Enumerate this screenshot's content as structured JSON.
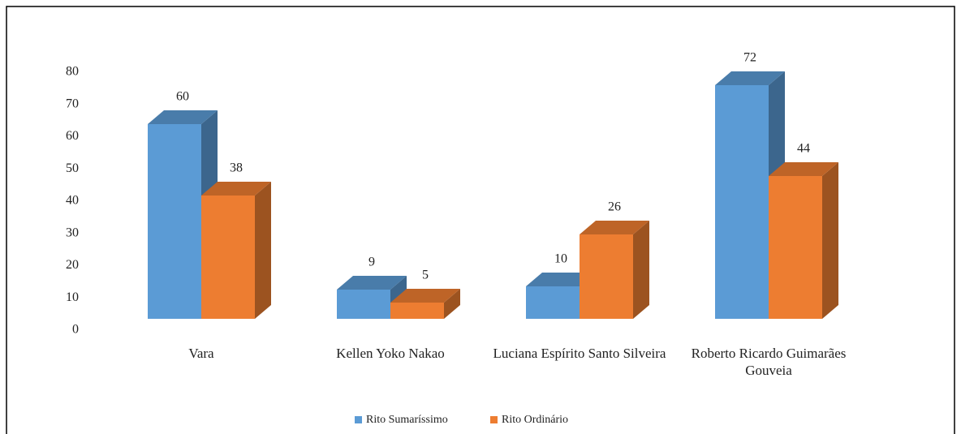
{
  "chart_data": {
    "type": "bar3d",
    "categories": [
      "Vara",
      "Kellen Yoko Nakao",
      "Luciana Espírito Santo Silveira",
      "Roberto Ricardo Guimarães Gouveia"
    ],
    "series": [
      {
        "name": "Rito Sumaríssimo",
        "color": "#5b9bd5",
        "values": [
          60,
          9,
          10,
          72
        ]
      },
      {
        "name": "Rito Ordinário",
        "color": "#ed7d31",
        "values": [
          38,
          5,
          26,
          44
        ]
      }
    ],
    "ylim": [
      0,
      80
    ],
    "yticks": [
      0,
      10,
      20,
      30,
      40,
      50,
      60,
      70,
      80
    ],
    "legend": "bottom"
  }
}
